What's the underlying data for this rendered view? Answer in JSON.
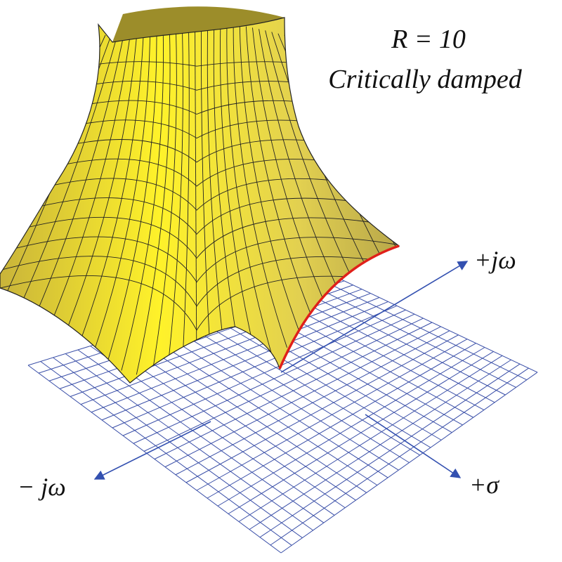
{
  "labels": {
    "parameter": "R = 10",
    "condition": "Critically damped",
    "axis_pos_jw": "+jω",
    "axis_neg_jw": "− jω",
    "axis_sigma": "+σ"
  }
}
